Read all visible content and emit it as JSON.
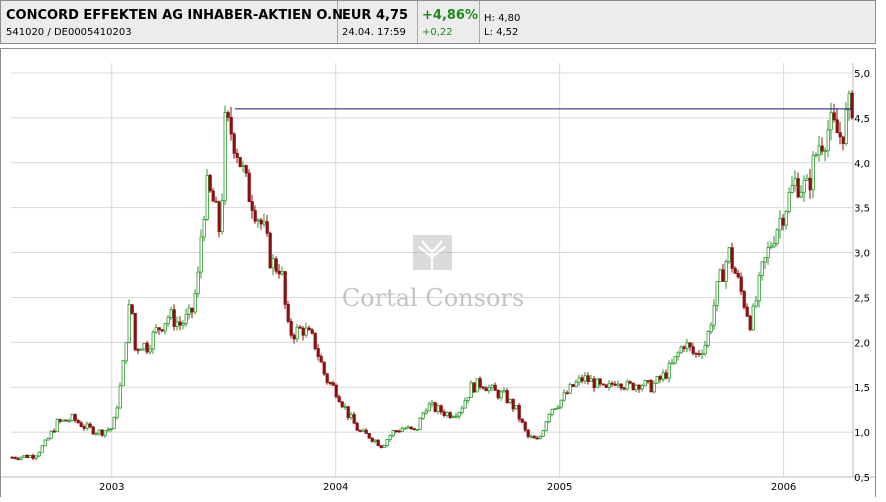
{
  "header": {
    "name": "CONCORD EFFEKTEN AG INHABER-AKTIEN O.N.",
    "wkn": "541020",
    "separator": "/",
    "isin": "DE0005410203",
    "price": "EUR 4,75",
    "timestamp": "24.04. 17:59",
    "change_pct": "+4,86%",
    "change_abs": "+0,22",
    "high": "H: 4,80",
    "low": "L: 4,52"
  },
  "watermark": {
    "text": "Cortal Consors"
  },
  "colors": {
    "up": "#2c9a2c",
    "down": "#8a1010",
    "resistance_line": "#1a1a7a",
    "grid": "#d8d8d8"
  },
  "chart_data": {
    "type": "line",
    "series": [
      {
        "values_x": [
          2002.55,
          2002.65,
          2002.7,
          2002.75,
          2002.82,
          2002.88,
          2002.94,
          2003.0,
          2003.04,
          2003.06,
          2003.08,
          2003.1,
          2003.12,
          2003.15,
          2003.2,
          2003.25,
          2003.3,
          2003.35,
          2003.38,
          2003.4,
          2003.42,
          2003.45,
          2003.48,
          2003.5,
          2003.53,
          2003.55,
          2003.57,
          2003.6,
          2003.62,
          2003.65,
          2003.68,
          2003.7,
          2003.72,
          2003.75,
          2003.78,
          2003.8,
          2003.85,
          2003.9,
          2003.95,
          2004.0,
          2004.05,
          2004.1,
          2004.15,
          2004.2,
          2004.25,
          2004.3,
          2004.35,
          2004.4,
          2004.45,
          2004.5,
          2004.55,
          2004.6,
          2004.65,
          2004.7,
          2004.75,
          2004.8,
          2004.85,
          2004.9,
          2004.95,
          2005.0,
          2005.05,
          2005.1,
          2005.15,
          2005.2,
          2005.25,
          2005.3,
          2005.35,
          2005.4,
          2005.45,
          2005.5,
          2005.55,
          2005.6,
          2005.65,
          2005.7,
          2005.75,
          2005.8,
          2005.85,
          2005.9,
          2005.95,
          2006.0,
          2006.05,
          2006.1,
          2006.15,
          2006.2,
          2006.25,
          2006.31
        ],
        "values_y": [
          0.72,
          0.74,
          0.88,
          1.1,
          1.15,
          1.05,
          1.0,
          1.05,
          1.6,
          2.1,
          2.5,
          1.9,
          2.0,
          1.95,
          2.15,
          2.3,
          2.2,
          2.3,
          2.7,
          3.4,
          3.7,
          3.55,
          3.2,
          4.4,
          4.35,
          4.2,
          4.0,
          3.7,
          3.6,
          3.4,
          3.2,
          2.95,
          2.85,
          2.85,
          2.15,
          2.1,
          2.15,
          2.0,
          1.6,
          1.45,
          1.2,
          1.0,
          0.95,
          0.85,
          1.0,
          1.05,
          1.0,
          1.3,
          1.25,
          1.2,
          1.25,
          1.5,
          1.55,
          1.45,
          1.4,
          1.25,
          0.95,
          0.9,
          1.25,
          1.35,
          1.5,
          1.6,
          1.55,
          1.45,
          1.6,
          1.5,
          1.55,
          1.5,
          1.6,
          1.75,
          2.0,
          1.85,
          2.0,
          2.6,
          3.0,
          2.6,
          2.2,
          2.8,
          3.2,
          3.5,
          3.8,
          3.7,
          4.2,
          4.4,
          4.3,
          4.75
        ]
      }
    ],
    "resistance_level": 4.6,
    "x_ticks": [
      "2003",
      "2004",
      "2005",
      "2006"
    ],
    "x_tick_values": [
      2003.0,
      2004.0,
      2005.0,
      2006.0
    ],
    "y_ticks": [
      "0,5",
      "1,0",
      "1,5",
      "2,0",
      "2,5",
      "3,0",
      "3,5",
      "4,0",
      "4,5",
      "5,0"
    ],
    "y_tick_values": [
      0.5,
      1.0,
      1.5,
      2.0,
      2.5,
      3.0,
      3.5,
      4.0,
      4.5,
      5.0
    ],
    "xlim": [
      2002.55,
      2006.31
    ],
    "ylim": [
      0.5,
      5.0
    ],
    "grid": true,
    "y_axis_side": "right"
  }
}
